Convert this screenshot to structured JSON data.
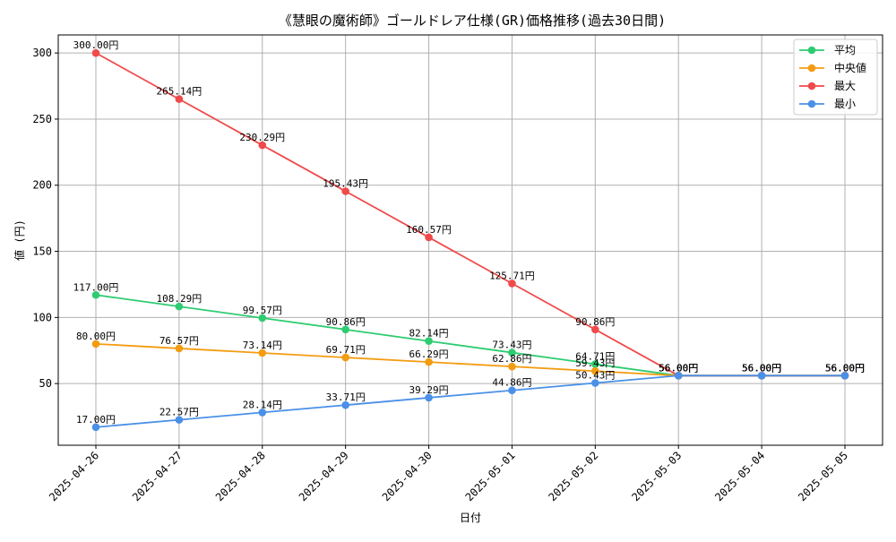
{
  "chart_data": {
    "type": "line",
    "title": "《慧眼の魔術師》ゴールドレア仕様(GR)価格推移(過去30日間)",
    "xlabel": "日付",
    "ylabel": "値 (円)",
    "categories": [
      "2025-04-26",
      "2025-04-27",
      "2025-04-28",
      "2025-04-29",
      "2025-04-30",
      "2025-05-01",
      "2025-05-02",
      "2025-05-03",
      "2025-05-04",
      "2025-05-05"
    ],
    "ylim": [
      3.35,
      313.65
    ],
    "yticks": [
      50,
      100,
      150,
      200,
      250,
      300
    ],
    "grid": true,
    "legend_position": "top-right",
    "label_suffix": "円",
    "series": [
      {
        "name": "平均",
        "color": "#2ecc71",
        "values": [
          117.0,
          108.29,
          99.57,
          90.86,
          82.14,
          73.43,
          64.71,
          56.0,
          56.0,
          56.0
        ]
      },
      {
        "name": "中央値",
        "color": "#f39c12",
        "values": [
          80.0,
          76.57,
          73.14,
          69.71,
          66.29,
          62.86,
          59.43,
          56.0,
          56.0,
          56.0
        ]
      },
      {
        "name": "最大",
        "color": "#f04a4a",
        "values": [
          300.0,
          265.14,
          230.29,
          195.43,
          160.57,
          125.71,
          90.86,
          56.0,
          56.0,
          56.0
        ]
      },
      {
        "name": "最小",
        "color": "#4a90e8",
        "values": [
          17.0,
          22.57,
          28.14,
          33.71,
          39.29,
          44.86,
          50.43,
          56.0,
          56.0,
          56.0
        ]
      }
    ]
  }
}
